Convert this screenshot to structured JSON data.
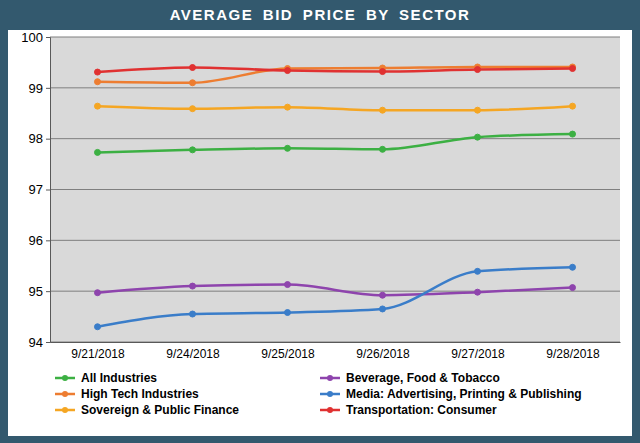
{
  "chart_data": {
    "type": "line",
    "title": "AVERAGE BID PRICE BY SECTOR",
    "categories": [
      "9/21/2018",
      "9/24/2018",
      "9/25/2018",
      "9/26/2018",
      "9/27/2018",
      "9/28/2018"
    ],
    "series": [
      {
        "name": "All Industries",
        "color": "#3cb043",
        "marker": "circle",
        "line_style": "solid",
        "values": [
          97.73,
          97.78,
          97.81,
          97.79,
          98.03,
          98.09
        ]
      },
      {
        "name": "Beverage, Food & Tobacco",
        "color": "#8e44ad",
        "marker": "circle",
        "line_style": "solid",
        "values": [
          94.97,
          95.1,
          95.13,
          94.92,
          94.98,
          95.07
        ]
      },
      {
        "name": "High Tech Industries",
        "color": "#ed7d31",
        "marker": "circle",
        "line_style": "solid",
        "values": [
          99.12,
          99.1,
          99.38,
          99.39,
          99.41,
          99.41
        ]
      },
      {
        "name": "Media: Advertising, Printing & Publishing",
        "color": "#3a7dc9",
        "marker": "circle",
        "line_style": "solid",
        "values": [
          94.3,
          94.55,
          94.58,
          94.65,
          95.39,
          95.47
        ]
      },
      {
        "name": "Sovereign & Public Finance",
        "color": "#f5a623",
        "marker": "circle",
        "line_style": "solid",
        "values": [
          98.64,
          98.59,
          98.62,
          98.56,
          98.56,
          98.64
        ]
      },
      {
        "name": "Transportation: Consumer",
        "color": "#e03131",
        "marker": "circle",
        "line_style": "solid",
        "values": [
          99.31,
          99.4,
          99.34,
          99.32,
          99.36,
          99.38
        ]
      }
    ],
    "ylim": [
      94,
      100
    ],
    "yticks": [
      94,
      95,
      96,
      97,
      98,
      99,
      100
    ],
    "grid": true,
    "legend": "bottom"
  }
}
